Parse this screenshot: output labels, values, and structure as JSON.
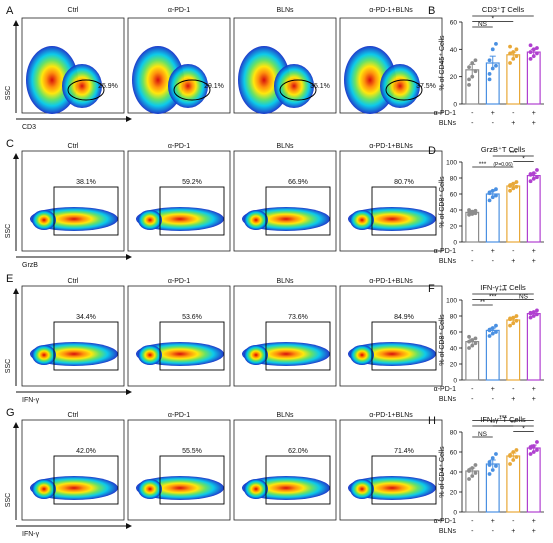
{
  "colors": {
    "ctrl": "#8c8c8c",
    "pd1": "#4a90e2",
    "blns": "#e8a838",
    "combo": "#b040d0",
    "flow_bg": "#1b2aa8"
  },
  "panels": [
    {
      "letter": "A",
      "ylabel": "SSC",
      "xlabel": "CD3",
      "group_titles": [],
      "gate": "ellipse",
      "percents": [
        "25.9%",
        "29.1%",
        "35.1%",
        "37.5%"
      ]
    },
    {
      "letter": "C",
      "ylabel": "SSC",
      "xlabel": "GrzB",
      "group_titles": [
        "Ctrl",
        "α-PD-1",
        "BLNs",
        "α-PD-1+BLNs"
      ],
      "gate": "rect",
      "percents": [
        "38.1%",
        "59.2%",
        "66.9%",
        "80.7%"
      ]
    },
    {
      "letter": "E",
      "ylabel": "SSC",
      "xlabel": "IFN-γ",
      "group_titles": [
        "Ctrl",
        "α-PD-1",
        "BLNs",
        "α-PD-1+BLNs"
      ],
      "gate": "rect",
      "percents": [
        "34.4%",
        "53.6%",
        "73.6%",
        "84.9%"
      ]
    },
    {
      "letter": "G",
      "ylabel": "SSC",
      "xlabel": "IFN-γ",
      "group_titles": [
        "Ctrl",
        "α-PD-1",
        "BLNs",
        "α-PD-1+BLNs"
      ],
      "gate": "rect",
      "percents": [
        "42.0%",
        "55.5%",
        "62.0%",
        "71.4%"
      ]
    }
  ],
  "top_group_titles": [
    "Ctrl",
    "α-PD-1",
    "BLNs",
    "α-PD-1+BLNs"
  ],
  "chart_data": [
    {
      "type": "bar",
      "letter": "B",
      "title": "CD3⁺T Cells",
      "ylabel": "% of CD45⁺ Cells",
      "ylim": [
        0,
        60
      ],
      "yticks": [
        0,
        20,
        40,
        60
      ],
      "categories": [
        "Ctrl",
        "α-PD-1",
        "BLNs",
        "α-PD-1+BLNs"
      ],
      "row_labels": [
        "α-PD-1",
        "BLNs"
      ],
      "row_signs": [
        [
          "-",
          "+",
          "-",
          "+"
        ],
        [
          "-",
          "-",
          "+",
          "+"
        ]
      ],
      "values": [
        25,
        30,
        36,
        38
      ],
      "errors": [
        4,
        5,
        2,
        2
      ],
      "points": [
        [
          18,
          20,
          24,
          27,
          30,
          32,
          14
        ],
        [
          22,
          26,
          28,
          32,
          40,
          44,
          18
        ],
        [
          30,
          33,
          35,
          37,
          38,
          40,
          42
        ],
        [
          33,
          35,
          37,
          38,
          40,
          41,
          43
        ]
      ],
      "brackets": [
        {
          "from": 0,
          "to": 1,
          "label": "NS",
          "level": 0
        },
        {
          "from": 0,
          "to": 2,
          "label": "*",
          "level": 1
        },
        {
          "from": 0,
          "to": 3,
          "label": "*",
          "level": 2
        }
      ]
    },
    {
      "type": "bar",
      "letter": "D",
      "title": "GrzB⁺T Cells",
      "ylabel": "% of CD8⁺ Cells",
      "ylim": [
        0,
        100
      ],
      "yticks": [
        0,
        20,
        40,
        60,
        80,
        100
      ],
      "categories": [
        "Ctrl",
        "α-PD-1",
        "BLNs",
        "α-PD-1+BLNs"
      ],
      "row_labels": [
        "α-PD-1",
        "BLNs"
      ],
      "row_signs": [
        [
          "-",
          "+",
          "-",
          "+"
        ],
        [
          "-",
          "-",
          "+",
          "+"
        ]
      ],
      "values": [
        37,
        60,
        70,
        83
      ],
      "errors": [
        2,
        4,
        3,
        3
      ],
      "points": [
        [
          34,
          35,
          36,
          37,
          38,
          39,
          40
        ],
        [
          52,
          56,
          58,
          61,
          64,
          66,
          62
        ],
        [
          64,
          67,
          69,
          71,
          73,
          75,
          70
        ],
        [
          76,
          79,
          81,
          84,
          86,
          90,
          85
        ]
      ],
      "brackets": [
        {
          "from": 0,
          "to": 1,
          "label": "***",
          "level": 0
        },
        {
          "from": 1,
          "to": 2,
          "label": "(P=0.06)",
          "level": 0
        },
        {
          "from": 2,
          "to": 3,
          "label": "*",
          "level": 1
        },
        {
          "from": 1,
          "to": 3,
          "label": "***",
          "level": 2
        }
      ]
    },
    {
      "type": "bar",
      "letter": "F",
      "title": "IFN-γ⁺T Cells",
      "ylabel": "% of CD8⁺ Cells",
      "ylim": [
        0,
        100
      ],
      "yticks": [
        0,
        20,
        40,
        60,
        80,
        100
      ],
      "categories": [
        "Ctrl",
        "α-PD-1",
        "BLNs",
        "α-PD-1+BLNs"
      ],
      "row_labels": [
        "α-PD-1",
        "BLNs"
      ],
      "row_signs": [
        [
          "-",
          "+",
          "-",
          "+"
        ],
        [
          "-",
          "-",
          "+",
          "+"
        ]
      ],
      "values": [
        48,
        62,
        75,
        83
      ],
      "errors": [
        3,
        3,
        3,
        2
      ],
      "points": [
        [
          40,
          43,
          46,
          48,
          50,
          52,
          54
        ],
        [
          55,
          58,
          60,
          62,
          65,
          68,
          63
        ],
        [
          68,
          71,
          74,
          76,
          78,
          80,
          77
        ],
        [
          78,
          80,
          82,
          84,
          85,
          87,
          83
        ]
      ],
      "brackets": [
        {
          "from": 0,
          "to": 1,
          "label": "**",
          "level": 0
        },
        {
          "from": 2,
          "to": 3,
          "label": "NS",
          "level": 1
        },
        {
          "from": 0,
          "to": 2,
          "label": "***",
          "level": 1
        },
        {
          "from": 0,
          "to": 3,
          "label": "***",
          "level": 2
        }
      ]
    },
    {
      "type": "bar",
      "letter": "H",
      "title": "IFN-γ⁺T Cells",
      "ylabel": "% of CD4⁺ Cells",
      "ylim": [
        0,
        80
      ],
      "yticks": [
        0,
        20,
        40,
        60,
        80
      ],
      "categories": [
        "Ctrl",
        "α-PD-1",
        "BLNs",
        "α-PD-1+BLNs"
      ],
      "row_labels": [
        "α-PD-1",
        "BLNs"
      ],
      "row_signs": [
        [
          "-",
          "+",
          "-",
          "+"
        ],
        [
          "-",
          "-",
          "+",
          "+"
        ]
      ],
      "values": [
        41,
        48,
        56,
        64
      ],
      "errors": [
        3,
        4,
        3,
        3
      ],
      "points": [
        [
          33,
          36,
          39,
          41,
          44,
          47,
          42
        ],
        [
          38,
          42,
          46,
          50,
          54,
          58,
          47
        ],
        [
          48,
          52,
          55,
          57,
          60,
          62,
          56
        ],
        [
          58,
          60,
          62,
          64,
          66,
          70,
          65
        ]
      ],
      "brackets": [
        {
          "from": 0,
          "to": 1,
          "label": "NS",
          "level": 0
        },
        {
          "from": 2,
          "to": 3,
          "label": "*",
          "level": 1
        },
        {
          "from": 0,
          "to": 2,
          "label": "**",
          "level": 2
        },
        {
          "from": 1,
          "to": 3,
          "label": "**",
          "level": 2
        },
        {
          "from": 0,
          "to": 3,
          "label": "***",
          "level": 3
        }
      ]
    }
  ]
}
